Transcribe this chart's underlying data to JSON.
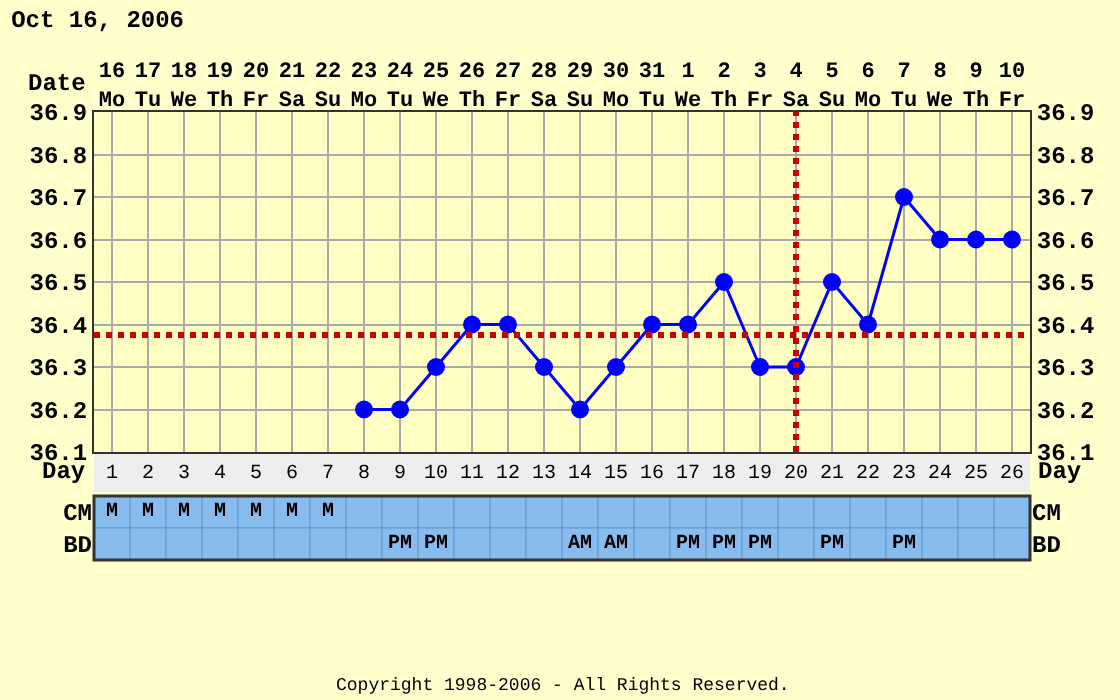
{
  "chart_data": [
    {
      "type": "line",
      "title": "Oct 16, 2006",
      "xlabel": "Day",
      "x2label": "Date",
      "series": [
        {
          "color": "#0000ff",
          "x": [
            8,
            9,
            10,
            11,
            12,
            13,
            14,
            15,
            16,
            17,
            18,
            19,
            20,
            21,
            22,
            23,
            24,
            25,
            26
          ],
          "values": [
            36.2,
            36.2,
            36.3,
            36.4,
            36.4,
            36.3,
            36.2,
            36.3,
            36.4,
            36.4,
            36.5,
            36.3,
            36.3,
            36.5,
            36.4,
            36.7,
            36.6,
            36.6,
            36.6
          ]
        }
      ],
      "xlim": [
        0.5,
        26.5
      ],
      "xticks": [
        1,
        2,
        3,
        4,
        5,
        6,
        7,
        8,
        9,
        10,
        11,
        12,
        13,
        14,
        15,
        16,
        17,
        18,
        19,
        20,
        21,
        22,
        23,
        24,
        25,
        26
      ],
      "x2lim": [
        "2006-10-15T12:00",
        "2006-11-10T12:00"
      ],
      "x2ticks": [
        {
          "value": "2006-10-16",
          "label": "16\nMo"
        },
        {
          "value": "2006-10-17",
          "label": "17\nTu"
        },
        {
          "value": "2006-10-18",
          "label": "18\nWe"
        },
        {
          "value": "2006-10-19",
          "label": "19\nTh"
        },
        {
          "value": "2006-10-20",
          "label": "20\nFr"
        },
        {
          "value": "2006-10-21",
          "label": "21\nSa"
        },
        {
          "value": "2006-10-22",
          "label": "22\nSu"
        },
        {
          "value": "2006-10-23",
          "label": "23\nMo"
        },
        {
          "value": "2006-10-24",
          "label": "24\nTu"
        },
        {
          "value": "2006-10-25",
          "label": "25\nWe"
        },
        {
          "value": "2006-10-26",
          "label": "26\nTh"
        },
        {
          "value": "2006-10-27",
          "label": "27\nFr"
        },
        {
          "value": "2006-10-28",
          "label": "28\nSa"
        },
        {
          "value": "2006-10-29",
          "label": "29\nSu"
        },
        {
          "value": "2006-10-30",
          "label": "30\nMo"
        },
        {
          "value": "2006-10-31",
          "label": "31\nTu"
        },
        {
          "value": "2006-11-01",
          "label": "1\nWe"
        },
        {
          "value": "2006-11-02",
          "label": "2\nTh"
        },
        {
          "value": "2006-11-03",
          "label": "3\nFr"
        },
        {
          "value": "2006-11-04",
          "label": "4\nSa"
        },
        {
          "value": "2006-11-05",
          "label": "5\nSu"
        },
        {
          "value": "2006-11-06",
          "label": "6\nMo"
        },
        {
          "value": "2006-11-07",
          "label": "7\nTu"
        },
        {
          "value": "2006-11-08",
          "label": "8\nWe"
        },
        {
          "value": "2006-11-09",
          "label": "9\nTh"
        },
        {
          "value": "2006-11-10",
          "label": "10\nFr"
        }
      ],
      "ylim": [
        36.1,
        36.9
      ],
      "yticks": [
        36.1,
        36.2,
        36.3,
        36.4,
        36.5,
        36.6,
        36.7,
        36.8,
        36.9
      ],
      "y2lim": [
        36.1,
        36.9
      ],
      "y2ticks": [
        36.1,
        36.2,
        36.3,
        36.4,
        36.5,
        36.6,
        36.7,
        36.8,
        36.9
      ],
      "grid": true,
      "marker": "circle",
      "line_style": "solid",
      "ref_lines": [
        {
          "axis": "y",
          "value": 36.375,
          "color": "#cc0000",
          "line_style": "dotted"
        },
        {
          "axis": "x",
          "value": 20,
          "color": "#cc0000",
          "line_style": "dotted"
        }
      ],
      "annotations": [
        "Copyright 1998-2006 - All Rights Reserved."
      ]
    },
    {
      "type": "heatmap",
      "categories": [
        null,
        null,
        null,
        null,
        null,
        null,
        null,
        null,
        null,
        null,
        null,
        null,
        null,
        null,
        null,
        null,
        null,
        null,
        null,
        null,
        null,
        null,
        null,
        null,
        null,
        null
      ],
      "y_categories": [
        "CM",
        "BD"
      ],
      "y2_categories": [
        "CM",
        "BD"
      ],
      "cells": [
        [
          null,
          null,
          null,
          null,
          null,
          null,
          null,
          null,
          null,
          null,
          null,
          null,
          null,
          null,
          null,
          null,
          null,
          null,
          null,
          null,
          null,
          null,
          null,
          null,
          null,
          null
        ],
        [
          null,
          null,
          null,
          null,
          null,
          null,
          null,
          null,
          null,
          null,
          null,
          null,
          null,
          null,
          null,
          null,
          null,
          null,
          null,
          null,
          null,
          null,
          null,
          null,
          null,
          null
        ]
      ],
      "cell_labels": [
        [
          "M",
          "M",
          "M",
          "M",
          "M",
          "M",
          "M",
          null,
          null,
          null,
          null,
          null,
          null,
          null,
          null,
          null,
          null,
          null,
          null,
          null,
          null,
          null,
          null,
          null,
          null,
          null
        ],
        [
          null,
          null,
          null,
          null,
          null,
          null,
          null,
          null,
          "PM",
          "PM",
          null,
          null,
          null,
          "AM",
          "AM",
          null,
          "PM",
          "PM",
          "PM",
          null,
          "PM",
          null,
          "PM",
          null,
          null,
          null
        ]
      ]
    }
  ]
}
